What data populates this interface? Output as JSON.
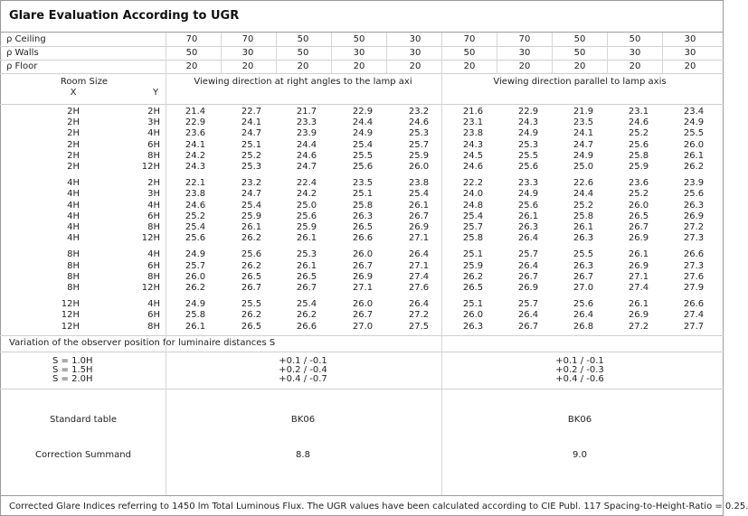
{
  "title": "Glare Evaluation According to UGR",
  "reflectances": [
    {
      "label": "ρ  Ceiling",
      "values": [
        "70",
        "70",
        "50",
        "50",
        "30",
        "70",
        "70",
        "50",
        "50",
        "30"
      ]
    },
    {
      "label": "ρ  Walls",
      "values": [
        "50",
        "30",
        "50",
        "30",
        "30",
        "50",
        "30",
        "50",
        "30",
        "30"
      ]
    },
    {
      "label": "ρ  Floor",
      "values": [
        "20",
        "20",
        "20",
        "20",
        "20",
        "20",
        "20",
        "20",
        "20",
        "20"
      ]
    }
  ],
  "header": {
    "room_size": "Room Size",
    "x": "X",
    "y": "Y",
    "right_angles": "Viewing direction at right angles to the lamp axi",
    "parallel": "Viewing direction parallel to lamp axis"
  },
  "groups": [
    {
      "rows": [
        {
          "x": "2H",
          "y": "2H",
          "v": [
            "21.4",
            "22.7",
            "21.7",
            "22.9",
            "23.2",
            "21.6",
            "22.9",
            "21.9",
            "23.1",
            "23.4"
          ]
        },
        {
          "x": "2H",
          "y": "3H",
          "v": [
            "22.9",
            "24.1",
            "23.3",
            "24.4",
            "24.6",
            "23.1",
            "24.3",
            "23.5",
            "24.6",
            "24.9"
          ]
        },
        {
          "x": "2H",
          "y": "4H",
          "v": [
            "23.6",
            "24.7",
            "23.9",
            "24.9",
            "25.3",
            "23.8",
            "24.9",
            "24.1",
            "25.2",
            "25.5"
          ]
        },
        {
          "x": "2H",
          "y": "6H",
          "v": [
            "24.1",
            "25.1",
            "24.4",
            "25.4",
            "25.7",
            "24.3",
            "25.3",
            "24.7",
            "25.6",
            "26.0"
          ]
        },
        {
          "x": "2H",
          "y": "8H",
          "v": [
            "24.2",
            "25.2",
            "24.6",
            "25.5",
            "25.9",
            "24.5",
            "25.5",
            "24.9",
            "25.8",
            "26.1"
          ]
        },
        {
          "x": "2H",
          "y": "12H",
          "v": [
            "24.3",
            "25.3",
            "24.7",
            "25.6",
            "26.0",
            "24.6",
            "25.6",
            "25.0",
            "25.9",
            "26.2"
          ]
        }
      ]
    },
    {
      "rows": [
        {
          "x": "4H",
          "y": "2H",
          "v": [
            "22.1",
            "23.2",
            "22.4",
            "23.5",
            "23.8",
            "22.2",
            "23.3",
            "22.6",
            "23.6",
            "23.9"
          ]
        },
        {
          "x": "4H",
          "y": "3H",
          "v": [
            "23.8",
            "24.7",
            "24.2",
            "25.1",
            "25.4",
            "24.0",
            "24.9",
            "24.4",
            "25.2",
            "25.6"
          ]
        },
        {
          "x": "4H",
          "y": "4H",
          "v": [
            "24.6",
            "25.4",
            "25.0",
            "25.8",
            "26.1",
            "24.8",
            "25.6",
            "25.2",
            "26.0",
            "26.3"
          ]
        },
        {
          "x": "4H",
          "y": "6H",
          "v": [
            "25.2",
            "25.9",
            "25.6",
            "26.3",
            "26.7",
            "25.4",
            "26.1",
            "25.8",
            "26.5",
            "26.9"
          ]
        },
        {
          "x": "4H",
          "y": "8H",
          "v": [
            "25.4",
            "26.1",
            "25.9",
            "26.5",
            "26.9",
            "25.7",
            "26.3",
            "26.1",
            "26.7",
            "27.2"
          ]
        },
        {
          "x": "4H",
          "y": "12H",
          "v": [
            "25.6",
            "26.2",
            "26.1",
            "26.6",
            "27.1",
            "25.8",
            "26.4",
            "26.3",
            "26.9",
            "27.3"
          ]
        }
      ]
    },
    {
      "rows": [
        {
          "x": "8H",
          "y": "4H",
          "v": [
            "24.9",
            "25.6",
            "25.3",
            "26.0",
            "26.4",
            "25.1",
            "25.7",
            "25.5",
            "26.1",
            "26.6"
          ]
        },
        {
          "x": "8H",
          "y": "6H",
          "v": [
            "25.7",
            "26.2",
            "26.1",
            "26.7",
            "27.1",
            "25.9",
            "26.4",
            "26.3",
            "26.9",
            "27.3"
          ]
        },
        {
          "x": "8H",
          "y": "8H",
          "v": [
            "26.0",
            "26.5",
            "26.5",
            "26.9",
            "27.4",
            "26.2",
            "26.7",
            "26.7",
            "27.1",
            "27.6"
          ]
        },
        {
          "x": "8H",
          "y": "12H",
          "v": [
            "26.2",
            "26.7",
            "26.7",
            "27.1",
            "27.6",
            "26.5",
            "26.9",
            "27.0",
            "27.4",
            "27.9"
          ]
        }
      ]
    },
    {
      "rows": [
        {
          "x": "12H",
          "y": "4H",
          "v": [
            "24.9",
            "25.5",
            "25.4",
            "26.0",
            "26.4",
            "25.1",
            "25.7",
            "25.6",
            "26.1",
            "26.6"
          ]
        },
        {
          "x": "12H",
          "y": "6H",
          "v": [
            "25.8",
            "26.2",
            "26.2",
            "26.7",
            "27.2",
            "26.0",
            "26.4",
            "26.4",
            "26.9",
            "27.4"
          ]
        },
        {
          "x": "12H",
          "y": "8H",
          "v": [
            "26.1",
            "26.5",
            "26.6",
            "27.0",
            "27.5",
            "26.3",
            "26.7",
            "26.8",
            "27.2",
            "27.7"
          ]
        }
      ]
    }
  ],
  "variation": {
    "label": "Variation of the observer position for luminaire distances S",
    "rows": [
      {
        "s": "S = 1.0H",
        "right": "+0.1 / -0.1",
        "parallel": "+0.1 / -0.1"
      },
      {
        "s": "S = 1.5H",
        "right": "+0.2 / -0.4",
        "parallel": "+0.2 / -0.3"
      },
      {
        "s": "S = 2.0H",
        "right": "+0.4 / -0.7",
        "parallel": "+0.4 / -0.6"
      }
    ]
  },
  "standard_table": {
    "label": "Standard table",
    "right": "BK06",
    "parallel": "BK06"
  },
  "correction": {
    "label": "Correction Summand",
    "right": "8.8",
    "parallel": "9.0"
  },
  "footer": "Corrected Glare Indices referring to 1450 lm Total Luminous Flux. The UGR values have been calculated according to CIE Publ. 117    Spacing-to-Height-Ratio = 0.25."
}
